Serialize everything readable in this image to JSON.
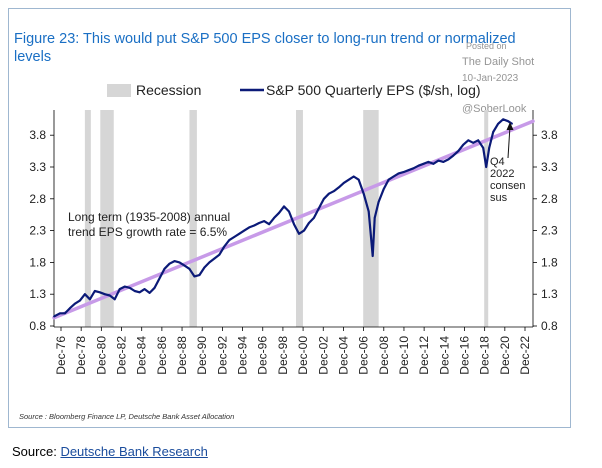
{
  "figure": {
    "title": "Figure 23: This would put S&P 500 EPS closer to long-run trend or normalized levels",
    "source_note": "Source : Bloomberg Finance LP, Deutsche Bank Asset Allocation"
  },
  "watermark": {
    "posted_on": "Posted on",
    "site": "The Daily Shot",
    "date": "10-Jan-2023",
    "handle": "@SoberLook"
  },
  "page_source": {
    "label": "Source:",
    "link_text": "Deutsche Bank Research"
  },
  "colors": {
    "title": "#1a6fc4",
    "eps_line": "#0b1a78",
    "trend_line": "#c79ae8",
    "recession": "#d6d6d6",
    "frame": "#9fb7d0"
  },
  "chart_data": {
    "type": "line",
    "legend": [
      {
        "key": "recession",
        "label": "Recession"
      },
      {
        "key": "eps",
        "label": "S&P 500 Quarterly EPS ($/sh, log)"
      }
    ],
    "legend_position": "top",
    "x_tick_labels": [
      "Dec-76",
      "Dec-78",
      "Dec-80",
      "Dec-82",
      "Dec-84",
      "Dec-86",
      "Dec-88",
      "Dec-90",
      "Dec-92",
      "Dec-94",
      "Dec-96",
      "Dec-98",
      "Dec-00",
      "Dec-02",
      "Dec-04",
      "Dec-06",
      "Dec-08",
      "Dec-10",
      "Dec-12",
      "Dec-14",
      "Dec-16",
      "Dec-18",
      "Dec-20",
      "Dec-22"
    ],
    "y_ticks": [
      "0.8",
      "1.3",
      "1.8",
      "2.3",
      "2.8",
      "3.3",
      "3.8"
    ],
    "ylim": [
      0.8,
      4.1
    ],
    "xlim": [
      1976.9,
      2025.0
    ],
    "scale_note": "log axis; tick labels shown as printed",
    "grid": false,
    "recessions": [
      [
        1980.0,
        1980.6
      ],
      [
        1981.55,
        1982.9
      ],
      [
        1990.5,
        1991.25
      ],
      [
        2001.2,
        2001.9
      ],
      [
        2007.95,
        2009.5
      ],
      [
        2020.1,
        2020.4
      ]
    ],
    "eps_series": {
      "name": "S&P 500 Quarterly EPS ($/sh, log)",
      "x": [
        1976.9,
        1977.5,
        1978.0,
        1978.5,
        1979.0,
        1979.5,
        1980.0,
        1980.5,
        1981.0,
        1981.5,
        1982.0,
        1982.5,
        1983.0,
        1983.5,
        1984.0,
        1984.5,
        1985.0,
        1985.5,
        1986.0,
        1986.5,
        1987.0,
        1987.5,
        1988.0,
        1988.5,
        1989.0,
        1989.5,
        1990.0,
        1990.5,
        1991.0,
        1991.5,
        1992.0,
        1992.5,
        1993.0,
        1993.5,
        1994.0,
        1994.5,
        1995.0,
        1995.5,
        1996.0,
        1996.5,
        1997.0,
        1997.5,
        1998.0,
        1998.5,
        1999.0,
        1999.5,
        2000.0,
        2000.5,
        2001.0,
        2001.5,
        2002.0,
        2002.5,
        2003.0,
        2003.5,
        2004.0,
        2004.5,
        2005.0,
        2005.5,
        2006.0,
        2006.5,
        2007.0,
        2007.5,
        2008.0,
        2008.5,
        2008.9,
        2009.1,
        2009.5,
        2010.0,
        2010.5,
        2011.0,
        2011.5,
        2012.0,
        2012.5,
        2013.0,
        2013.5,
        2014.0,
        2014.5,
        2015.0,
        2015.5,
        2016.0,
        2016.5,
        2017.0,
        2017.5,
        2018.0,
        2018.5,
        2019.0,
        2019.5,
        2020.0,
        2020.3,
        2020.6,
        2021.0,
        2021.5,
        2022.0,
        2022.5,
        2022.9
      ],
      "values": [
        0.95,
        1.0,
        1.0,
        1.08,
        1.15,
        1.2,
        1.3,
        1.22,
        1.35,
        1.33,
        1.3,
        1.28,
        1.22,
        1.38,
        1.42,
        1.4,
        1.35,
        1.33,
        1.38,
        1.32,
        1.4,
        1.55,
        1.7,
        1.78,
        1.82,
        1.8,
        1.75,
        1.7,
        1.58,
        1.6,
        1.72,
        1.8,
        1.86,
        1.92,
        2.05,
        2.15,
        2.2,
        2.25,
        2.3,
        2.35,
        2.38,
        2.42,
        2.45,
        2.4,
        2.5,
        2.58,
        2.68,
        2.6,
        2.4,
        2.25,
        2.3,
        2.42,
        2.5,
        2.65,
        2.8,
        2.88,
        2.92,
        2.98,
        3.05,
        3.1,
        3.15,
        3.1,
        2.88,
        2.6,
        1.9,
        2.5,
        2.75,
        2.95,
        3.1,
        3.15,
        3.2,
        3.22,
        3.25,
        3.28,
        3.32,
        3.35,
        3.38,
        3.35,
        3.4,
        3.38,
        3.42,
        3.48,
        3.55,
        3.65,
        3.72,
        3.68,
        3.72,
        3.6,
        3.3,
        3.6,
        3.85,
        3.98,
        4.05,
        4.02,
        3.98
      ]
    },
    "trend_series": {
      "x": [
        1976.9,
        2025.0
      ],
      "values": [
        0.93,
        4.02
      ]
    },
    "annotations": {
      "trend": "Long term (1935-2008) annual trend EPS growth rate = 6.5%",
      "q4": "Q4 2022 consensus",
      "q4_lines": [
        "Q4",
        "2022",
        "consen",
        "sus"
      ]
    }
  }
}
